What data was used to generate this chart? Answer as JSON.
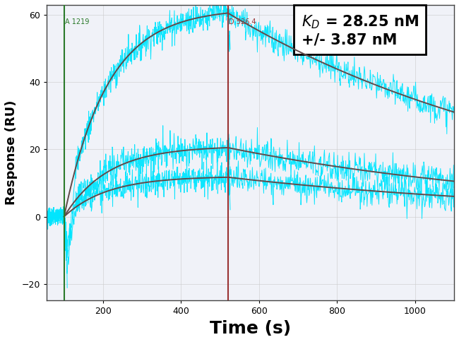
{
  "title": "",
  "xlabel": "Time (s)",
  "ylabel": "Response (RU)",
  "xlabel_fontsize": 18,
  "ylabel_fontsize": 13,
  "xlabel_fontweight": "bold",
  "ylabel_fontweight": "bold",
  "xlim": [
    55,
    1100
  ],
  "ylim": [
    -25,
    63
  ],
  "yticks": [
    -20,
    0,
    20,
    40,
    60
  ],
  "xticks": [
    200,
    400,
    600,
    800,
    1000
  ],
  "assoc_start": 100,
  "dissoc_start": 520,
  "assoc_label": "A 1219",
  "dissoc_label": "D 526.4",
  "bg_color": "#f0f2f8",
  "curves": [
    {
      "Rmax": 62,
      "ka": 0.009,
      "kd": 0.00115,
      "baseline": 0
    },
    {
      "Rmax": 21,
      "ka": 0.009,
      "kd": 0.00115,
      "baseline": 0
    },
    {
      "Rmax": 12,
      "ka": 0.009,
      "kd": 0.00115,
      "baseline": 0
    }
  ],
  "noise_scale": 2.2,
  "cyan_color": "#00E5FF",
  "fit_color": "#555555",
  "fit_color2": "#8B3030",
  "green_line_color": "#2a7a2a",
  "red_line_color": "#993333",
  "annotation_fontsize": 15
}
